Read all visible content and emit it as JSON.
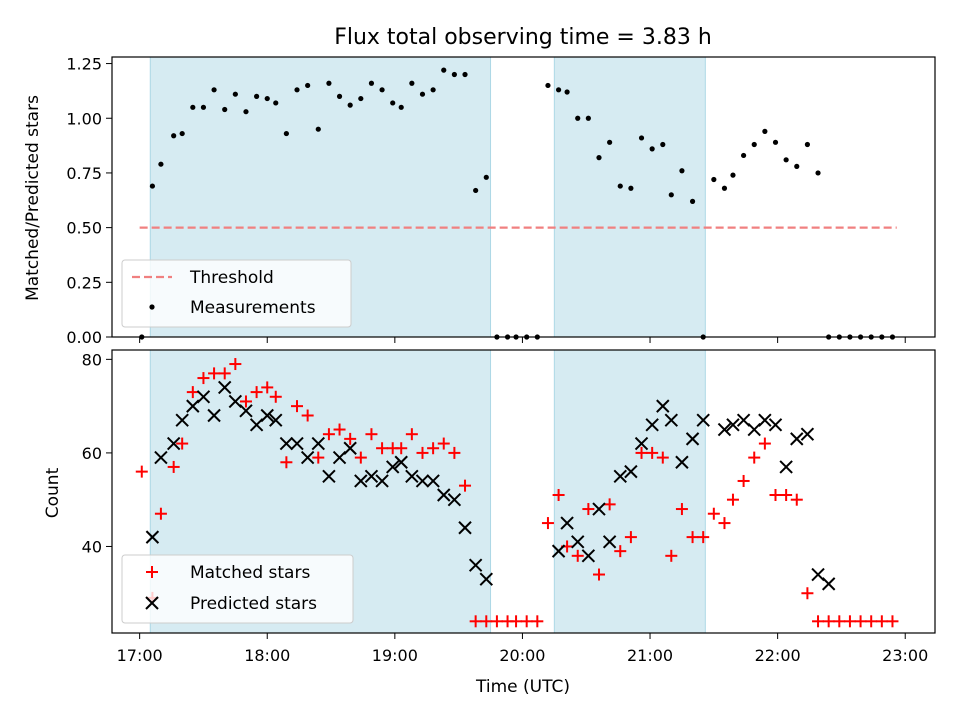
{
  "title": "Flux total observing time = 3.83 h",
  "xlabel": "Time (UTC)",
  "x_ticks": [
    "17:00",
    "18:00",
    "19:00",
    "20:00",
    "21:00",
    "22:00",
    "23:00"
  ],
  "colors": {
    "threshold": "#f08080",
    "shade": "#add8e6",
    "matched": "#ff0000",
    "predicted": "#000000"
  },
  "chart_data": [
    {
      "type": "scatter",
      "ylabel": "Matched/Predicted stars",
      "xlim": [
        "16:47",
        "23:14"
      ],
      "ylim": [
        0,
        1.28
      ],
      "y_ticks": [
        "0.00",
        "0.25",
        "0.50",
        "0.75",
        "1.00",
        "1.25"
      ],
      "shaded_intervals": [
        [
          "17:05",
          "19:45"
        ],
        [
          "20:15",
          "21:26"
        ]
      ],
      "threshold": {
        "name": "Threshold",
        "value": 0.5,
        "x_range": [
          "17:00",
          "22:56"
        ]
      },
      "series": [
        {
          "name": "Measurements",
          "x": [
            "17:01",
            "17:06",
            "17:10",
            "17:16",
            "17:20",
            "17:25",
            "17:30",
            "17:35",
            "17:40",
            "17:45",
            "17:50",
            "17:55",
            "18:00",
            "18:04",
            "18:09",
            "18:14",
            "18:19",
            "18:24",
            "18:29",
            "18:34",
            "18:39",
            "18:44",
            "18:49",
            "18:54",
            "18:59",
            "19:03",
            "19:08",
            "19:13",
            "19:18",
            "19:23",
            "19:28",
            "19:33",
            "19:38",
            "19:43",
            "19:48",
            "19:53",
            "19:57",
            "20:02",
            "20:07",
            "20:12",
            "20:17",
            "20:21",
            "20:26",
            "20:31",
            "20:36",
            "20:41",
            "20:46",
            "20:51",
            "20:56",
            "21:01",
            "21:06",
            "21:10",
            "21:15",
            "21:20",
            "21:25",
            "21:30",
            "21:35",
            "21:39",
            "21:44",
            "21:49",
            "21:54",
            "21:59",
            "22:04",
            "22:09",
            "22:14",
            "22:19",
            "22:24",
            "22:29",
            "22:34",
            "22:39",
            "22:44",
            "22:49",
            "22:54"
          ],
          "values": [
            0.0,
            0.69,
            0.79,
            0.92,
            0.93,
            1.05,
            1.05,
            1.13,
            1.04,
            1.11,
            1.03,
            1.1,
            1.09,
            1.07,
            0.93,
            1.13,
            1.15,
            0.95,
            1.16,
            1.1,
            1.06,
            1.09,
            1.16,
            1.13,
            1.07,
            1.05,
            1.16,
            1.11,
            1.13,
            1.22,
            1.2,
            1.2,
            0.67,
            0.73,
            0.0,
            0.0,
            0.0,
            0.0,
            0.0,
            1.15,
            1.13,
            1.12,
            1.0,
            1.0,
            0.82,
            0.89,
            0.69,
            0.68,
            0.91,
            0.86,
            0.88,
            0.65,
            0.76,
            0.62,
            0.0,
            0.72,
            0.68,
            0.74,
            0.83,
            0.88,
            0.94,
            0.89,
            0.81,
            0.78,
            0.88,
            0.75,
            0.0,
            0.0,
            0.0,
            0.0,
            0.0,
            0.0,
            0.0
          ]
        }
      ],
      "legend": {
        "placement": "lower-left",
        "entries": [
          "Threshold",
          "Measurements"
        ]
      }
    },
    {
      "type": "scatter",
      "ylabel": "Count",
      "xlim": [
        "16:47",
        "23:14"
      ],
      "ylim": [
        21.5,
        82
      ],
      "y_ticks": [
        "40",
        "60",
        "80"
      ],
      "shaded_intervals": [
        [
          "17:05",
          "19:45"
        ],
        [
          "20:15",
          "21:26"
        ]
      ],
      "series": [
        {
          "name": "Matched stars",
          "marker": "plus",
          "x": [
            "17:01",
            "17:06",
            "17:10",
            "17:16",
            "17:20",
            "17:25",
            "17:30",
            "17:35",
            "17:40",
            "17:45",
            "17:50",
            "17:55",
            "18:00",
            "18:04",
            "18:09",
            "18:14",
            "18:19",
            "18:24",
            "18:29",
            "18:34",
            "18:39",
            "18:44",
            "18:49",
            "18:54",
            "18:59",
            "19:03",
            "19:08",
            "19:13",
            "19:18",
            "19:23",
            "19:28",
            "19:33",
            "19:38",
            "19:43",
            "19:48",
            "19:53",
            "19:57",
            "20:02",
            "20:07",
            "20:12",
            "20:17",
            "20:21",
            "20:26",
            "20:31",
            "20:36",
            "20:41",
            "20:46",
            "20:51",
            "20:56",
            "21:01",
            "21:06",
            "21:10",
            "21:15",
            "21:20",
            "21:25",
            "21:30",
            "21:35",
            "21:39",
            "21:44",
            "21:49",
            "21:54",
            "21:59",
            "22:04",
            "22:09",
            "22:14",
            "22:19",
            "22:24",
            "22:29",
            "22:34",
            "22:39",
            "22:44",
            "22:49",
            "22:54"
          ],
          "values": [
            56,
            29,
            47,
            57,
            62,
            73,
            76,
            77,
            77,
            79,
            71,
            73,
            74,
            72,
            58,
            70,
            68,
            59,
            64,
            65,
            63,
            59,
            64,
            61,
            61,
            61,
            64,
            60,
            61,
            62,
            60,
            53,
            24,
            24,
            24,
            24,
            24,
            24,
            24,
            45,
            51,
            40,
            38,
            48,
            34,
            49,
            39,
            42,
            60,
            60,
            59,
            38,
            48,
            42,
            42,
            47,
            45,
            50,
            54,
            59,
            62,
            51,
            51,
            50,
            30,
            24,
            24,
            24,
            24,
            24,
            24,
            24,
            24
          ]
        },
        {
          "name": "Predicted stars",
          "marker": "cross",
          "x": [
            "17:06",
            "17:10",
            "17:16",
            "17:20",
            "17:25",
            "17:30",
            "17:35",
            "17:40",
            "17:45",
            "17:50",
            "17:55",
            "18:00",
            "18:04",
            "18:09",
            "18:14",
            "18:19",
            "18:24",
            "18:29",
            "18:34",
            "18:39",
            "18:44",
            "18:49",
            "18:54",
            "18:59",
            "19:03",
            "19:08",
            "19:13",
            "19:18",
            "19:23",
            "19:28",
            "19:33",
            "19:38",
            "19:43",
            "20:17",
            "20:21",
            "20:26",
            "20:31",
            "20:36",
            "20:41",
            "20:46",
            "20:51",
            "20:56",
            "21:01",
            "21:06",
            "21:10",
            "21:15",
            "21:20",
            "21:25",
            "21:35",
            "21:39",
            "21:44",
            "21:49",
            "21:54",
            "21:59",
            "22:04",
            "22:09",
            "22:14",
            "22:19",
            "22:24"
          ],
          "values": [
            42,
            59,
            62,
            67,
            70,
            72,
            68,
            74,
            71,
            69,
            66,
            68,
            67,
            62,
            62,
            59,
            62,
            55,
            59,
            61,
            54,
            55,
            54,
            57,
            58,
            55,
            54,
            54,
            51,
            50,
            44,
            36,
            33,
            39,
            45,
            41,
            38,
            48,
            41,
            55,
            56,
            62,
            66,
            70,
            67,
            58,
            63,
            67,
            65,
            66,
            67,
            65,
            67,
            66,
            57,
            63,
            64,
            34,
            32
          ]
        }
      ],
      "legend": {
        "placement": "lower-left",
        "entries": [
          "Matched stars",
          "Predicted stars"
        ]
      }
    }
  ]
}
